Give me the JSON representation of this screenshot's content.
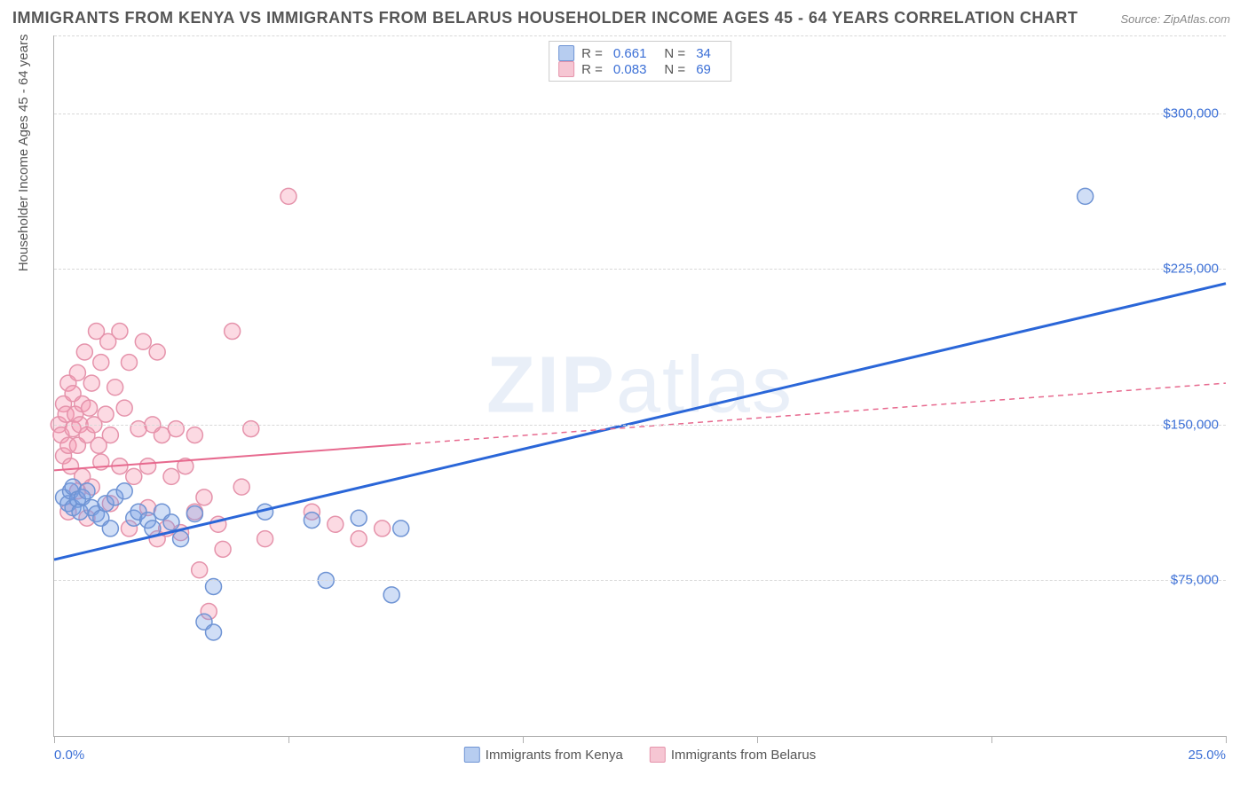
{
  "title": "IMMIGRANTS FROM KENYA VS IMMIGRANTS FROM BELARUS HOUSEHOLDER INCOME AGES 45 - 64 YEARS CORRELATION CHART",
  "source": "Source: ZipAtlas.com",
  "watermark_bold": "ZIP",
  "watermark_light": "atlas",
  "y_axis_title": "Householder Income Ages 45 - 64 years",
  "chart": {
    "type": "scatter",
    "xlim": [
      0,
      25
    ],
    "ylim": [
      0,
      337500
    ],
    "x_ticks": [
      0,
      5,
      10,
      15,
      20,
      25
    ],
    "x_tick_labels_shown": {
      "left": "0.0%",
      "right": "25.0%"
    },
    "y_grid": [
      75000,
      150000,
      225000,
      300000
    ],
    "y_tick_labels": [
      "$75,000",
      "$150,000",
      "$225,000",
      "$300,000"
    ],
    "grid_color": "#d8d8d8",
    "axis_color": "#b0b0b0",
    "background": "#ffffff",
    "marker_radius": 9,
    "marker_stroke_width": 1.5,
    "series": [
      {
        "name": "Immigrants from Kenya",
        "label": "Immigrants from Kenya",
        "color_fill": "rgba(120,160,230,0.35)",
        "color_stroke": "#6f94d4",
        "swatch_fill": "#b7cdf0",
        "swatch_border": "#6f94d4",
        "R": "0.661",
        "N": "34",
        "trend": {
          "x1": 0,
          "y1": 85000,
          "x2": 25,
          "y2": 218000,
          "solid_until_x": 25,
          "stroke": "#2a66d8",
          "width": 3
        },
        "points": [
          [
            0.2,
            115000
          ],
          [
            0.3,
            112000
          ],
          [
            0.35,
            118000
          ],
          [
            0.4,
            110000
          ],
          [
            0.4,
            120000
          ],
          [
            0.5,
            114000
          ],
          [
            0.55,
            108000
          ],
          [
            0.6,
            115000
          ],
          [
            0.7,
            118000
          ],
          [
            0.8,
            110000
          ],
          [
            0.9,
            107000
          ],
          [
            1.0,
            105000
          ],
          [
            1.1,
            112000
          ],
          [
            1.2,
            100000
          ],
          [
            1.3,
            115000
          ],
          [
            1.5,
            118000
          ],
          [
            1.7,
            105000
          ],
          [
            1.8,
            108000
          ],
          [
            2.0,
            104000
          ],
          [
            2.1,
            100000
          ],
          [
            2.3,
            108000
          ],
          [
            2.5,
            103000
          ],
          [
            2.7,
            95000
          ],
          [
            3.0,
            107000
          ],
          [
            3.2,
            55000
          ],
          [
            3.4,
            50000
          ],
          [
            3.4,
            72000
          ],
          [
            4.5,
            108000
          ],
          [
            5.5,
            104000
          ],
          [
            5.8,
            75000
          ],
          [
            6.5,
            105000
          ],
          [
            7.2,
            68000
          ],
          [
            7.4,
            100000
          ],
          [
            22.0,
            260000
          ]
        ]
      },
      {
        "name": "Immigrants from Belarus",
        "label": "Immigrants from Belarus",
        "color_fill": "rgba(245,150,175,0.35)",
        "color_stroke": "#e593ab",
        "swatch_fill": "#f6c6d3",
        "swatch_border": "#e593ab",
        "R": "0.083",
        "N": "69",
        "trend": {
          "x1": 0,
          "y1": 128000,
          "x2": 25,
          "y2": 170000,
          "solid_until_x": 7.5,
          "stroke": "#e76a8f",
          "width": 2,
          "dash": "6,5"
        },
        "points": [
          [
            0.1,
            150000
          ],
          [
            0.15,
            145000
          ],
          [
            0.2,
            160000
          ],
          [
            0.2,
            135000
          ],
          [
            0.25,
            155000
          ],
          [
            0.3,
            170000
          ],
          [
            0.3,
            140000
          ],
          [
            0.35,
            130000
          ],
          [
            0.4,
            148000
          ],
          [
            0.4,
            165000
          ],
          [
            0.45,
            155000
          ],
          [
            0.5,
            140000
          ],
          [
            0.5,
            175000
          ],
          [
            0.55,
            150000
          ],
          [
            0.6,
            160000
          ],
          [
            0.6,
            125000
          ],
          [
            0.65,
            185000
          ],
          [
            0.7,
            145000
          ],
          [
            0.75,
            158000
          ],
          [
            0.8,
            170000
          ],
          [
            0.8,
            120000
          ],
          [
            0.85,
            150000
          ],
          [
            0.9,
            195000
          ],
          [
            0.95,
            140000
          ],
          [
            1.0,
            180000
          ],
          [
            1.0,
            132000
          ],
          [
            1.1,
            155000
          ],
          [
            1.15,
            190000
          ],
          [
            1.2,
            145000
          ],
          [
            1.3,
            168000
          ],
          [
            1.4,
            195000
          ],
          [
            1.4,
            130000
          ],
          [
            1.5,
            158000
          ],
          [
            1.6,
            180000
          ],
          [
            1.7,
            125000
          ],
          [
            1.8,
            148000
          ],
          [
            1.9,
            190000
          ],
          [
            2.0,
            130000
          ],
          [
            2.0,
            110000
          ],
          [
            2.1,
            150000
          ],
          [
            2.2,
            185000
          ],
          [
            2.3,
            145000
          ],
          [
            2.4,
            100000
          ],
          [
            2.5,
            125000
          ],
          [
            2.6,
            148000
          ],
          [
            2.7,
            98000
          ],
          [
            2.8,
            130000
          ],
          [
            3.0,
            108000
          ],
          [
            3.0,
            145000
          ],
          [
            3.1,
            80000
          ],
          [
            3.2,
            115000
          ],
          [
            3.3,
            60000
          ],
          [
            3.5,
            102000
          ],
          [
            3.6,
            90000
          ],
          [
            3.8,
            195000
          ],
          [
            4.0,
            120000
          ],
          [
            4.2,
            148000
          ],
          [
            4.5,
            95000
          ],
          [
            5.0,
            260000
          ],
          [
            5.5,
            108000
          ],
          [
            6.0,
            102000
          ],
          [
            6.5,
            95000
          ],
          [
            7.0,
            100000
          ],
          [
            0.3,
            108000
          ],
          [
            0.5,
            118000
          ],
          [
            0.7,
            105000
          ],
          [
            1.2,
            112000
          ],
          [
            1.6,
            100000
          ],
          [
            2.2,
            95000
          ]
        ]
      }
    ]
  },
  "stat_legend_labels": {
    "R": "R =",
    "N": "N ="
  }
}
